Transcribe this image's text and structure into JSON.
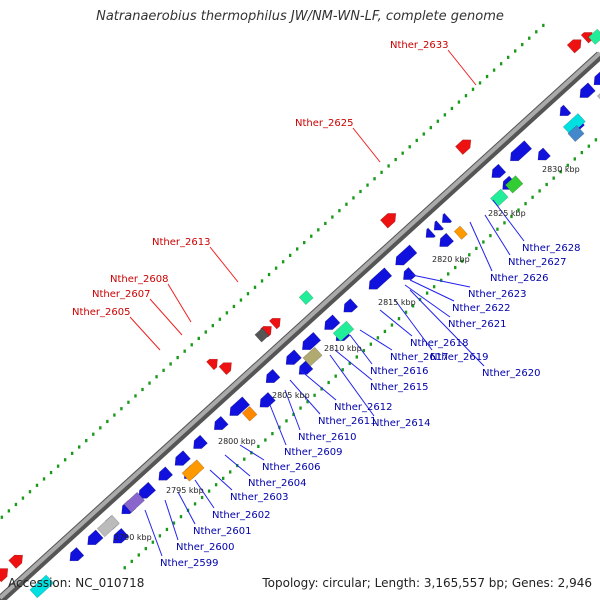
{
  "title": "Natranaerobius thermophilus JW/NM-WN-LF, complete genome",
  "footer": {
    "accession": "Accession: NC_010718",
    "topology": "Topology: circular; Length: 3,165,557 bp; Genes: 2,946"
  },
  "colors": {
    "backbone": "#888888",
    "dots": "#1a9a1a",
    "forward_gene": "#ee1111",
    "reverse_gene": "#1111dd",
    "forward_label": "#cc0000",
    "reverse_label": "#0000aa",
    "tick_label": "#222222"
  },
  "ticks": [
    "2790 kbp",
    "2795 kbp",
    "2800 kbp",
    "2805 kbp",
    "2810 kbp",
    "2815 kbp",
    "2820 kbp",
    "2825 kbp",
    "2830 kbp"
  ],
  "forward_labels": [
    "Nther_2605",
    "Nther_2607",
    "Nther_2608",
    "Nther_2613",
    "Nther_2625",
    "Nther_2633"
  ],
  "reverse_labels": [
    "Nther_2599",
    "Nther_2600",
    "Nther_2601",
    "Nther_2602",
    "Nther_2603",
    "Nther_2604",
    "Nther_2606",
    "Nther_2609",
    "Nther_2610",
    "Nther_2611",
    "Nther_2612",
    "Nther_2614",
    "Nther_2615",
    "Nther_2616",
    "Nther_2617",
    "Nther_2618",
    "Nther_2619",
    "Nther_2620",
    "Nther_2621",
    "Nther_2622",
    "Nther_2623",
    "Nther_2626",
    "Nther_2627",
    "Nther_2628"
  ]
}
